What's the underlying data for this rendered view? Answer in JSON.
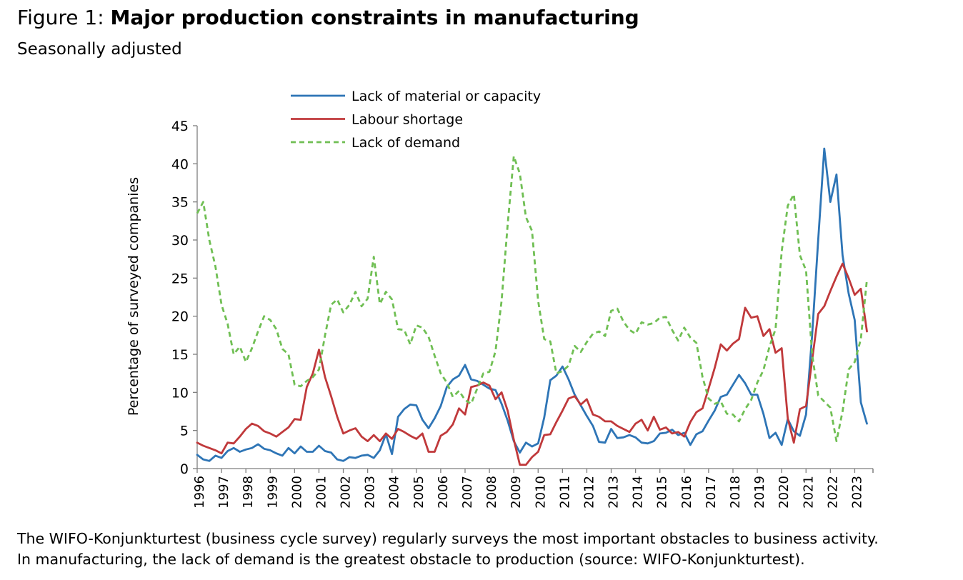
{
  "figure_label": "Figure 1:",
  "figure_title": "Major production constraints in manufacturing",
  "subtitle": "Seasonally adjusted",
  "caption": {
    "line1": "The WIFO-Konjunkturtest (business cycle survey) regularly surveys the most important obstacles to business activity.",
    "line2": "In manufacturing, the lack of demand is the greatest obstacle to production (source: WIFO-Konjunkturtest)."
  },
  "chart_data": {
    "type": "line",
    "title": "Major production constraints in manufacturing",
    "subtitle": "Seasonally adjusted",
    "xlabel": "",
    "ylabel": "Percentage of surveyed companies",
    "ylim": [
      0,
      45
    ],
    "yticks": [
      0,
      5,
      10,
      15,
      20,
      25,
      30,
      35,
      40,
      45
    ],
    "xrange": [
      1996,
      2023.75
    ],
    "x_tick_labels": [
      "1996",
      "1997",
      "1998",
      "1999",
      "2000",
      "2001",
      "2002",
      "2003",
      "2004",
      "2005",
      "2006",
      "2007",
      "2008",
      "2009",
      "2010",
      "2011",
      "2012",
      "2013",
      "2014",
      "2015",
      "2016",
      "2017",
      "2018",
      "2019",
      "2020",
      "2021",
      "2022",
      "2023"
    ],
    "grid": false,
    "legend_position": "top-left",
    "frequency": "quarterly",
    "x_start": 1996,
    "series": [
      {
        "name": "Lack of material or capacity",
        "color": "#2E75B6",
        "dash": "solid",
        "values": [
          1.8,
          1.2,
          1.0,
          1.7,
          1.4,
          2.3,
          2.7,
          2.2,
          2.5,
          2.7,
          3.2,
          2.6,
          2.4,
          2.0,
          1.7,
          2.7,
          2.0,
          2.9,
          2.2,
          2.2,
          3.0,
          2.3,
          2.1,
          1.2,
          1.0,
          1.5,
          1.4,
          1.7,
          1.8,
          1.4,
          2.4,
          4.5,
          1.9,
          6.8,
          7.8,
          8.4,
          8.3,
          6.4,
          5.3,
          6.6,
          8.2,
          10.7,
          11.7,
          12.2,
          13.6,
          11.7,
          11.5,
          11.0,
          10.5,
          10.3,
          8.5,
          6.3,
          3.6,
          2.1,
          3.4,
          2.9,
          3.3,
          6.7,
          11.6,
          12.2,
          13.4,
          11.7,
          9.7,
          8.3,
          6.9,
          5.6,
          3.5,
          3.4,
          5.2,
          4.0,
          4.1,
          4.4,
          4.1,
          3.4,
          3.3,
          3.6,
          4.6,
          4.7,
          5.1,
          4.4,
          4.7,
          3.1,
          4.5,
          4.9,
          6.3,
          7.6,
          9.4,
          9.7,
          11.0,
          12.3,
          11.2,
          9.7,
          9.7,
          7.2,
          4.0,
          4.7,
          3.1,
          6.5,
          4.9,
          4.3,
          7.1,
          17.5,
          30.0,
          42.0,
          35.0,
          38.6,
          28.0,
          23.0,
          19.5,
          8.7,
          5.9
        ]
      },
      {
        "name": "Labour shortage",
        "color": "#C0393B",
        "dash": "solid",
        "values": [
          3.4,
          3.0,
          2.7,
          2.4,
          2.0,
          3.4,
          3.3,
          4.2,
          5.2,
          5.9,
          5.6,
          4.9,
          4.6,
          4.2,
          4.8,
          5.4,
          6.5,
          6.4,
          10.7,
          12.5,
          15.6,
          12.0,
          9.5,
          6.8,
          4.6,
          5.0,
          5.3,
          4.2,
          3.6,
          4.4,
          3.6,
          4.6,
          3.9,
          5.2,
          4.8,
          4.3,
          3.9,
          4.6,
          2.2,
          2.2,
          4.3,
          4.8,
          5.8,
          7.9,
          7.1,
          10.7,
          10.9,
          11.3,
          10.9,
          9.1,
          10.0,
          7.6,
          3.8,
          0.5,
          0.5,
          1.5,
          2.2,
          4.4,
          4.5,
          6.1,
          7.6,
          9.2,
          9.5,
          8.4,
          9.1,
          7.1,
          6.8,
          6.2,
          6.2,
          5.6,
          5.2,
          4.8,
          5.9,
          6.4,
          5.0,
          6.8,
          5.1,
          5.4,
          4.6,
          4.8,
          4.2,
          6.1,
          7.4,
          7.9,
          10.5,
          13.2,
          16.3,
          15.5,
          16.4,
          17.0,
          21.1,
          19.8,
          20.0,
          17.4,
          18.3,
          15.2,
          15.8,
          6.6,
          3.4,
          7.8,
          8.2,
          14.2,
          20.3,
          21.3,
          23.3,
          25.2,
          26.9,
          25.0,
          22.8,
          23.6,
          18.0
        ]
      },
      {
        "name": "Lack of demand",
        "color": "#70BF54",
        "dash": "dashed",
        "values": [
          33.5,
          35.0,
          30.0,
          26.5,
          21.5,
          19.0,
          15.0,
          16.0,
          14.0,
          15.8,
          18.0,
          20.0,
          19.5,
          18.3,
          15.7,
          15.0,
          11.0,
          10.8,
          11.5,
          12.0,
          13.0,
          17.5,
          21.5,
          22.2,
          20.5,
          21.5,
          23.2,
          21.3,
          22.3,
          27.8,
          21.6,
          23.2,
          22.2,
          18.3,
          18.2,
          16.3,
          18.8,
          18.5,
          17.3,
          14.8,
          12.5,
          11.3,
          9.4,
          10.2,
          9.0,
          8.5,
          10.5,
          12.5,
          12.7,
          15.4,
          22.0,
          32.0,
          41.0,
          38.7,
          33.0,
          31.2,
          22.0,
          17.0,
          16.7,
          12.5,
          12.8,
          13.5,
          16.1,
          15.3,
          16.6,
          17.7,
          18.0,
          17.4,
          20.7,
          21.0,
          19.3,
          18.2,
          17.7,
          19.2,
          18.9,
          19.1,
          19.8,
          19.9,
          18.2,
          16.8,
          18.5,
          17.2,
          16.5,
          12.0,
          9.2,
          8.5,
          8.8,
          7.2,
          7.1,
          6.2,
          7.8,
          9.0,
          11.3,
          12.9,
          16.0,
          18.3,
          28.5,
          34.5,
          36.0,
          28.0,
          26.0,
          15.0,
          9.6,
          8.8,
          8.0,
          3.6,
          7.5,
          13.0,
          14.0,
          17.0,
          24.8
        ]
      }
    ]
  }
}
